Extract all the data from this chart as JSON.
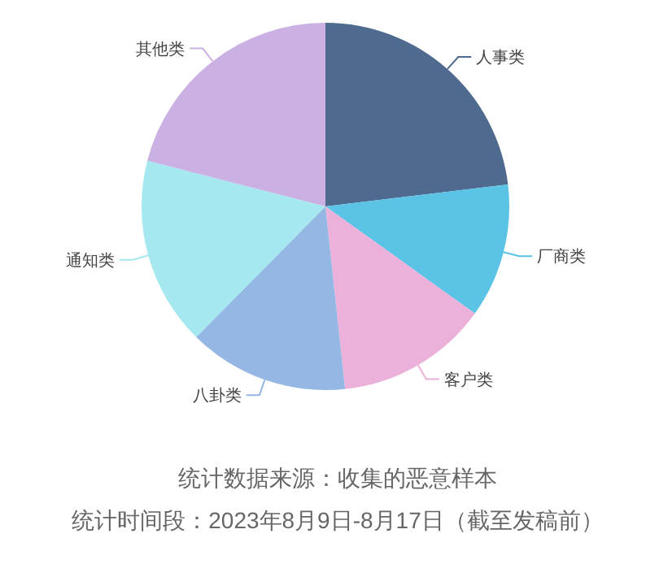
{
  "chart_data": {
    "type": "pie",
    "categories": [
      "人事类",
      "厂商类",
      "客户类",
      "八卦类",
      "通知类",
      "其他类"
    ],
    "values": [
      23.1,
      11.8,
      13.4,
      14.1,
      16.6,
      21.0
    ],
    "colors": [
      "#4e6a8f",
      "#5bc3e5",
      "#ebb1da",
      "#94b7e3",
      "#a5e8f0",
      "#cbb1e3"
    ],
    "annotations": [
      "统计数据来源：收集的恶意样本",
      "统计时间段：2023年8月9日-8月17日（截至发稿前）"
    ]
  }
}
